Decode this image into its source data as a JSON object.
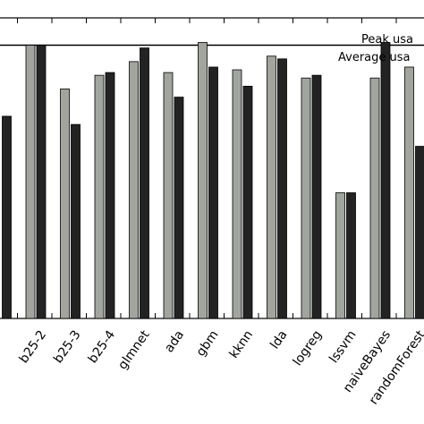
{
  "chart_data": {
    "type": "bar",
    "categories": [
      "",
      "b25-2",
      "b25-3",
      "b25-4",
      "glmnet",
      "ada",
      "gbm",
      "kknn",
      "lda",
      "logreg",
      "lssvm",
      "naiveBayes",
      "randomForest"
    ],
    "series": [
      {
        "name": "Peak usage",
        "values": [
          null,
          1.0,
          0.84,
          0.89,
          0.94,
          0.9,
          1.01,
          0.91,
          0.96,
          0.88,
          0.46,
          0.88,
          0.92
        ]
      },
      {
        "name": "Average usage",
        "values": [
          0.74,
          1.0,
          0.71,
          0.9,
          0.99,
          0.81,
          0.92,
          0.85,
          0.95,
          0.89,
          0.46,
          1.01,
          0.63
        ]
      }
    ],
    "colors": {
      "Peak usage": "#a1a59e",
      "Average usage": "#232323"
    },
    "reference_line": 1.0,
    "xlabel": "",
    "ylabel": "",
    "ylim": [
      0,
      1.1
    ],
    "legend": {
      "placement": "top-right",
      "entries": [
        "Peak usa",
        "Average usa"
      ]
    }
  }
}
